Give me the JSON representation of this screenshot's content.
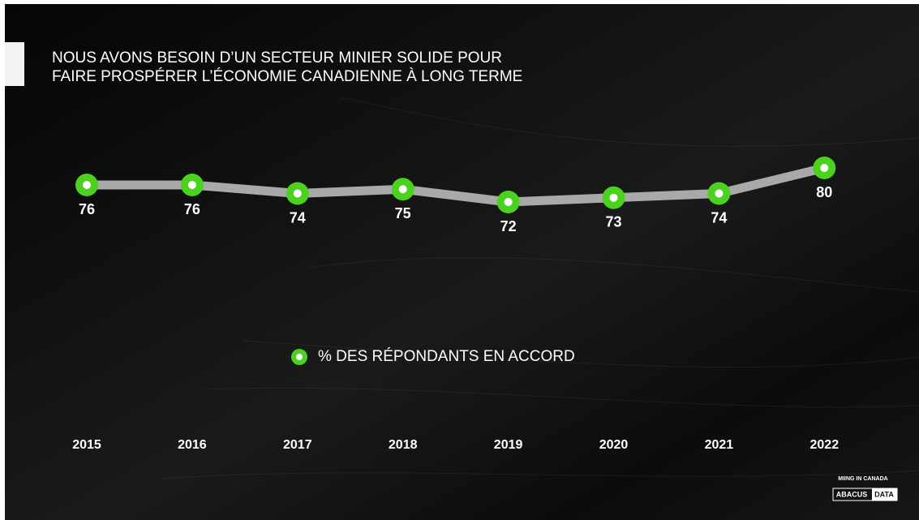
{
  "chart_data": {
    "type": "line",
    "title": [
      "NOUS AVONS BESOIN D’UN SECTEUR MINIER SOLIDE POUR",
      "FAIRE PROSPÉRER L’ÉCONOMIE CANADIENNE À LONG TERME"
    ],
    "categories": [
      "2015",
      "2016",
      "2017",
      "2018",
      "2019",
      "2020",
      "2021",
      "2022"
    ],
    "series": [
      {
        "name": "% DES RÉPONDANTS EN ACCORD",
        "color": "#4bd21f",
        "values": [
          76,
          76,
          74,
          75,
          72,
          73,
          74,
          80
        ]
      }
    ],
    "line_color": "#a9a9a9",
    "legend": "center"
  },
  "branding": {
    "tagline": "MIING IN CANADA",
    "logo_left": "ABACUS",
    "logo_right": "DATA"
  }
}
